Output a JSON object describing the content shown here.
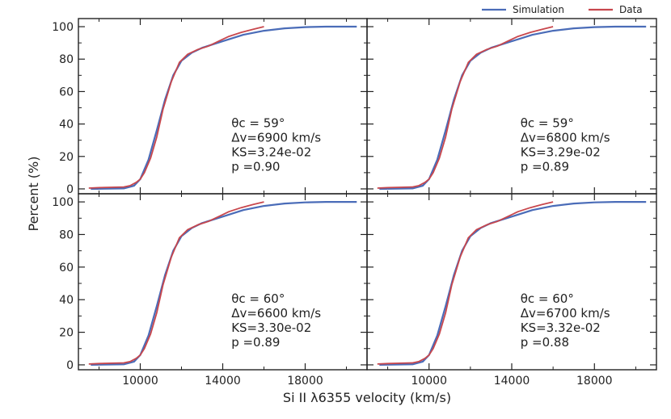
{
  "figure": {
    "xlabel": "Si II λ6355 velocity (km/s)",
    "ylabel": "Percent (%)"
  },
  "legend": {
    "placement": "top-right",
    "simulation_label": "Simulation",
    "data_label": "Data"
  },
  "colors": {
    "simulation": "#4a6cb8",
    "data": "#c8474d",
    "axes": "#222222"
  },
  "chart_data": [
    {
      "type": "line",
      "panel": "top-left",
      "xlim": [
        7000,
        21000
      ],
      "ylim": [
        -3,
        105
      ],
      "xticks": [
        10000,
        14000,
        18000
      ],
      "yticks": [
        0,
        20,
        40,
        60,
        80,
        100
      ],
      "annotations": [
        "θc = 59°",
        "Δv=6900 km/s",
        "KS=3.24e-02",
        "p  =0.90"
      ],
      "series": [
        {
          "name": "Simulation",
          "x": [
            7600,
            9200,
            9700,
            10000,
            10400,
            10800,
            11200,
            11600,
            12000,
            12500,
            13000,
            14000,
            15000,
            16000,
            17000,
            18000,
            19000,
            20500
          ],
          "y": [
            0,
            0.3,
            2,
            6,
            18,
            36,
            55,
            70,
            79,
            84,
            87,
            91,
            95,
            97.5,
            99,
            99.7,
            100,
            100
          ]
        },
        {
          "name": "Data",
          "x": [
            7500,
            8000,
            8600,
            9200,
            9500,
            9800,
            10000,
            10200,
            10500,
            10800,
            11100,
            11500,
            11900,
            12300,
            12800,
            13300,
            13800,
            14300,
            14900,
            15500,
            16000
          ],
          "y": [
            0.5,
            0.8,
            1,
            1.2,
            2,
            4,
            6,
            10,
            19,
            32,
            49,
            66,
            78,
            83,
            86,
            88,
            91,
            94,
            96.5,
            98.5,
            100
          ]
        }
      ]
    },
    {
      "type": "line",
      "panel": "top-right",
      "xlim": [
        7000,
        21000
      ],
      "ylim": [
        -3,
        105
      ],
      "xticks": [
        10000,
        14000,
        18000
      ],
      "yticks": [
        0,
        20,
        40,
        60,
        80,
        100
      ],
      "annotations": [
        "θc = 59°",
        "Δv=6800 km/s",
        "KS=3.29e-02",
        "p  =0.89"
      ],
      "series": [
        {
          "name": "Simulation",
          "x": [
            7600,
            9200,
            9700,
            10000,
            10400,
            10800,
            11200,
            11600,
            12000,
            12500,
            13000,
            14000,
            15000,
            16000,
            17000,
            18000,
            19000,
            20500
          ],
          "y": [
            0,
            0.3,
            2,
            6,
            18,
            36,
            55,
            70,
            79,
            84,
            87,
            91,
            95,
            97.5,
            99,
            99.7,
            100,
            100
          ]
        },
        {
          "name": "Data",
          "x": [
            7500,
            8000,
            8600,
            9200,
            9500,
            9800,
            10000,
            10200,
            10500,
            10800,
            11100,
            11500,
            11900,
            12300,
            12800,
            13300,
            13800,
            14300,
            14900,
            15500,
            16000
          ],
          "y": [
            0.5,
            0.8,
            1,
            1.2,
            2,
            4,
            6,
            10,
            19,
            32,
            49,
            66,
            78,
            83,
            86,
            88,
            91,
            94,
            96.5,
            98.5,
            100
          ]
        }
      ]
    },
    {
      "type": "line",
      "panel": "bottom-left",
      "xlim": [
        7000,
        21000
      ],
      "ylim": [
        -3,
        105
      ],
      "xticks": [
        10000,
        14000,
        18000
      ],
      "yticks": [
        0,
        20,
        40,
        60,
        80,
        100
      ],
      "annotations": [
        "θc = 60°",
        "Δv=6600 km/s",
        "KS=3.30e-02",
        "p  =0.89"
      ],
      "series": [
        {
          "name": "Simulation",
          "x": [
            7600,
            9200,
            9700,
            10000,
            10400,
            10800,
            11200,
            11600,
            12000,
            12500,
            13000,
            14000,
            15000,
            16000,
            17000,
            18000,
            19000,
            20500
          ],
          "y": [
            0,
            0.3,
            2,
            6,
            18,
            36,
            55,
            70,
            79,
            84,
            87,
            91,
            95,
            97.5,
            99,
            99.7,
            100,
            100
          ]
        },
        {
          "name": "Data",
          "x": [
            7500,
            8000,
            8600,
            9200,
            9500,
            9800,
            10000,
            10200,
            10500,
            10800,
            11100,
            11500,
            11900,
            12300,
            12800,
            13300,
            13800,
            14300,
            14900,
            15500,
            16000
          ],
          "y": [
            0.5,
            0.8,
            1,
            1.2,
            2,
            4,
            6,
            10,
            19,
            32,
            49,
            66,
            78,
            83,
            86,
            88,
            91,
            94,
            96.5,
            98.5,
            100
          ]
        }
      ]
    },
    {
      "type": "line",
      "panel": "bottom-right",
      "xlim": [
        7000,
        21000
      ],
      "ylim": [
        -3,
        105
      ],
      "xticks": [
        10000,
        14000,
        18000
      ],
      "yticks": [
        0,
        20,
        40,
        60,
        80,
        100
      ],
      "annotations": [
        "θc = 60°",
        "Δv=6700 km/s",
        "KS=3.32e-02",
        "p  =0.88"
      ],
      "series": [
        {
          "name": "Simulation",
          "x": [
            7600,
            9200,
            9700,
            10000,
            10400,
            10800,
            11200,
            11600,
            12000,
            12500,
            13000,
            14000,
            15000,
            16000,
            17000,
            18000,
            19000,
            20500
          ],
          "y": [
            0,
            0.3,
            2,
            6,
            18,
            36,
            55,
            70,
            79,
            84,
            87,
            91,
            95,
            97.5,
            99,
            99.7,
            100,
            100
          ]
        },
        {
          "name": "Data",
          "x": [
            7500,
            8000,
            8600,
            9200,
            9500,
            9800,
            10000,
            10200,
            10500,
            10800,
            11100,
            11500,
            11900,
            12300,
            12800,
            13300,
            13800,
            14300,
            14900,
            15500,
            16000
          ],
          "y": [
            0.5,
            0.8,
            1,
            1.2,
            2,
            4,
            6,
            10,
            19,
            32,
            49,
            66,
            78,
            83,
            86,
            88,
            91,
            94,
            96.5,
            98.5,
            100
          ]
        }
      ]
    }
  ]
}
